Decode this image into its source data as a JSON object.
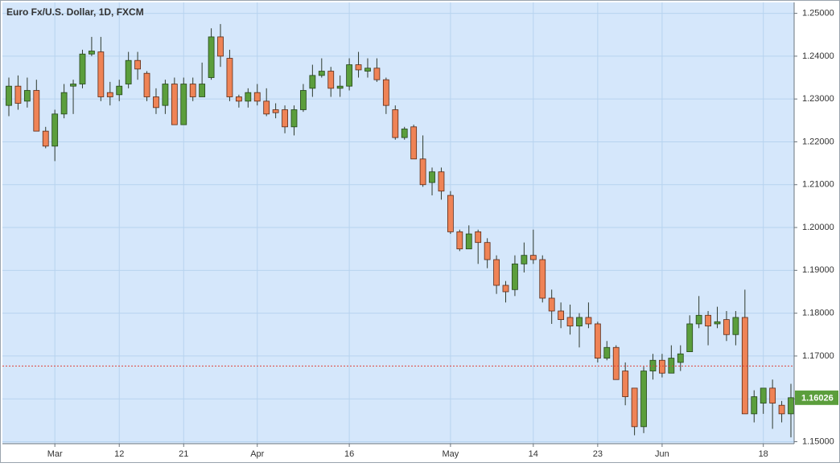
{
  "chart_data": {
    "type": "candlestick",
    "title": "Euro Fx/U.S. Dollar, 1D, FXCM",
    "categories": [
      null,
      null,
      null,
      null,
      null,
      "Mar",
      null,
      null,
      null,
      null,
      null,
      null,
      "12",
      null,
      null,
      null,
      null,
      null,
      null,
      "21",
      null,
      null,
      null,
      null,
      null,
      null,
      null,
      "Apr",
      null,
      null,
      null,
      null,
      null,
      null,
      null,
      null,
      null,
      "16",
      null,
      null,
      null,
      null,
      null,
      null,
      null,
      null,
      null,
      null,
      "May",
      null,
      null,
      null,
      null,
      null,
      null,
      null,
      null,
      "14",
      null,
      null,
      null,
      null,
      null,
      null,
      "23",
      null,
      null,
      null,
      null,
      null,
      null,
      "Jun",
      null,
      null,
      null,
      null,
      null,
      null,
      null,
      null,
      null,
      null,
      "18",
      null,
      null,
      null
    ],
    "open": [
      1.2285,
      1.233,
      1.2295,
      1.232,
      1.2225,
      1.219,
      1.2265,
      1.233,
      1.2335,
      1.2405,
      1.241,
      1.2315,
      1.231,
      1.2335,
      1.239,
      1.236,
      1.2305,
      1.2285,
      1.2335,
      1.224,
      1.2335,
      1.2305,
      1.235,
      1.2445,
      1.2395,
      1.2305,
      1.2295,
      1.2315,
      1.2295,
      1.2275,
      1.2275,
      1.2235,
      1.2275,
      1.2325,
      1.2355,
      1.2365,
      1.2325,
      1.233,
      1.238,
      1.2365,
      1.2372,
      1.2345,
      1.2275,
      1.221,
      1.2235,
      1.216,
      1.2105,
      1.213,
      1.2075,
      1.199,
      1.195,
      1.199,
      1.1965,
      1.1925,
      1.1865,
      1.1855,
      1.1915,
      1.1935,
      1.1925,
      1.1835,
      1.1805,
      1.179,
      1.177,
      1.179,
      1.1775,
      1.1695,
      1.172,
      1.1665,
      1.1625,
      1.1535,
      1.1665,
      1.169,
      1.166,
      1.1685,
      1.171,
      1.1775,
      1.1795,
      1.1775,
      1.1785,
      1.175,
      1.179,
      1.1565,
      1.159,
      1.1625,
      1.1585,
      1.1565
    ],
    "high": [
      1.235,
      1.2355,
      1.235,
      1.2345,
      1.2235,
      1.2275,
      1.2335,
      1.2345,
      1.2415,
      1.2445,
      1.2445,
      1.234,
      1.2345,
      1.241,
      1.241,
      1.2365,
      1.2325,
      1.2345,
      1.235,
      1.235,
      1.235,
      1.2385,
      1.2465,
      1.2475,
      1.2415,
      1.231,
      1.2325,
      1.2335,
      1.2325,
      1.229,
      1.2285,
      1.2285,
      1.2335,
      1.238,
      1.2395,
      1.2375,
      1.2355,
      1.2395,
      1.241,
      1.2395,
      1.2395,
      1.235,
      1.2285,
      1.2235,
      1.224,
      1.2215,
      1.214,
      1.214,
      1.2085,
      1.1995,
      1.2005,
      1.1995,
      1.1975,
      1.1935,
      1.1875,
      1.1935,
      1.1965,
      1.1995,
      1.1935,
      1.1855,
      1.1825,
      1.182,
      1.18,
      1.1825,
      1.178,
      1.1735,
      1.1725,
      1.1685,
      1.1625,
      1.1675,
      1.1705,
      1.1705,
      1.1725,
      1.1725,
      1.1795,
      1.184,
      1.1805,
      1.1815,
      1.1805,
      1.1805,
      1.1855,
      1.162,
      1.1625,
      1.1645,
      1.1595,
      1.1635
    ],
    "low": [
      1.226,
      1.2275,
      1.228,
      1.2225,
      1.2185,
      1.2155,
      1.2255,
      1.2265,
      1.2325,
      1.24,
      1.2295,
      1.2285,
      1.2295,
      1.2325,
      1.2345,
      1.2295,
      1.2265,
      1.2265,
      1.224,
      1.224,
      1.2295,
      1.2305,
      1.2345,
      1.2375,
      1.2295,
      1.228,
      1.228,
      1.2285,
      1.226,
      1.2255,
      1.222,
      1.2215,
      1.227,
      1.2305,
      1.235,
      1.2305,
      1.2305,
      1.232,
      1.235,
      1.235,
      1.234,
      1.2265,
      1.2205,
      1.2205,
      1.216,
      1.2095,
      1.2075,
      1.2065,
      1.1985,
      1.1945,
      1.195,
      1.1915,
      1.1905,
      1.1845,
      1.1825,
      1.184,
      1.1895,
      1.1915,
      1.1825,
      1.1775,
      1.1765,
      1.175,
      1.172,
      1.1765,
      1.1685,
      1.169,
      1.1645,
      1.1585,
      1.1515,
      1.152,
      1.1645,
      1.165,
      1.166,
      1.1665,
      1.171,
      1.1765,
      1.1725,
      1.1765,
      1.1735,
      1.1725,
      1.1565,
      1.1545,
      1.1565,
      1.153,
      1.1545,
      1.151
    ],
    "close": [
      1.233,
      1.229,
      1.232,
      1.2225,
      1.219,
      1.2265,
      1.2315,
      1.2335,
      1.2405,
      1.2412,
      1.2305,
      1.2305,
      1.233,
      1.239,
      1.237,
      1.2305,
      1.228,
      1.2335,
      1.224,
      1.2335,
      1.2305,
      1.2335,
      1.2445,
      1.24,
      1.2305,
      1.2295,
      1.2315,
      1.2295,
      1.2265,
      1.2268,
      1.2235,
      1.2275,
      1.232,
      1.2355,
      1.2365,
      1.2325,
      1.233,
      1.238,
      1.2368,
      1.2372,
      1.2345,
      1.2285,
      1.221,
      1.223,
      1.216,
      1.21,
      1.213,
      1.2085,
      1.199,
      1.195,
      1.1985,
      1.1965,
      1.1925,
      1.1865,
      1.185,
      1.1915,
      1.1935,
      1.1925,
      1.1835,
      1.1805,
      1.1785,
      1.177,
      1.179,
      1.1775,
      1.1695,
      1.172,
      1.1645,
      1.1605,
      1.1535,
      1.1665,
      1.169,
      1.166,
      1.1695,
      1.1705,
      1.1775,
      1.1795,
      1.177,
      1.178,
      1.175,
      1.179,
      1.1565,
      1.1605,
      1.1625,
      1.159,
      1.1565,
      1.16026
    ],
    "up_color": "#5b9e3c",
    "down_color": "#ef8356",
    "ylim": [
      1.14953,
      1.25255
    ],
    "yticks": [
      {
        "value": 1.15,
        "label": "1.15000"
      },
      {
        "value": 1.16,
        "label": "1.16000"
      },
      {
        "value": 1.17,
        "label": "1.17000"
      },
      {
        "value": 1.18,
        "label": "1.18000"
      },
      {
        "value": 1.19,
        "label": "1.19000"
      },
      {
        "value": 1.2,
        "label": "1.20000"
      },
      {
        "value": 1.21,
        "label": "1.21000"
      },
      {
        "value": 1.22,
        "label": "1.22000"
      },
      {
        "value": 1.23,
        "label": "1.23000"
      },
      {
        "value": 1.24,
        "label": "1.24000"
      },
      {
        "value": 1.25,
        "label": "1.25000"
      }
    ],
    "last_price": {
      "value": 1.16026,
      "label": "1.16026"
    },
    "reference_line": {
      "value": 1.16765,
      "color": "#e0413a"
    },
    "grid": true
  }
}
